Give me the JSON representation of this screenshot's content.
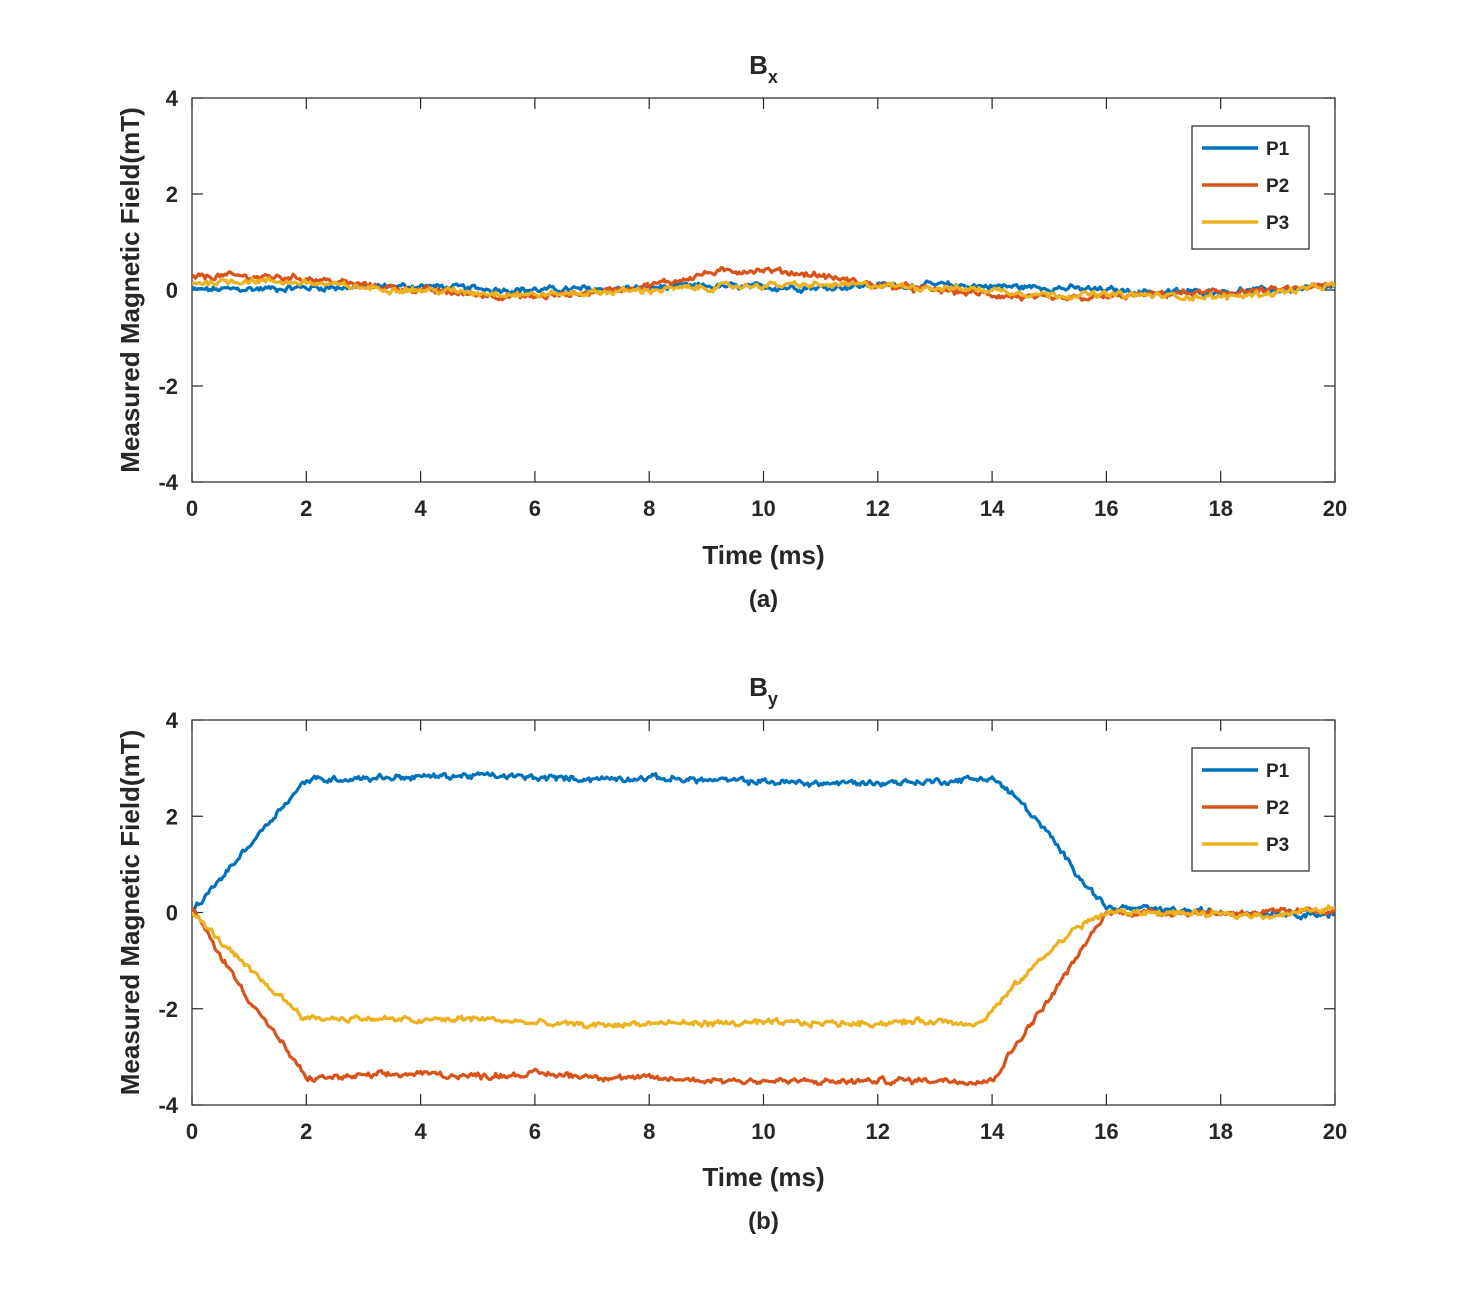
{
  "chart_data": [
    {
      "type": "line",
      "title": "B",
      "title_subscript": "x",
      "caption": "(a)",
      "xlabel": "Time (ms)",
      "ylabel": "Measured Magnetic Field(mT)",
      "xlim": [
        0,
        20
      ],
      "ylim": [
        -4,
        4
      ],
      "xticks": [
        "0",
        "2",
        "4",
        "6",
        "8",
        "10",
        "12",
        "14",
        "16",
        "18",
        "20"
      ],
      "yticks": [
        "-4",
        "-2",
        "0",
        "2",
        "4"
      ],
      "legend_position": "top-right",
      "grid": false,
      "series": [
        {
          "name": "P1",
          "color": "#0072BD",
          "x": [
            0,
            1,
            2,
            3,
            4,
            5,
            6,
            7,
            8,
            9,
            10,
            11,
            12,
            13,
            14,
            15,
            16,
            17,
            18,
            19,
            20
          ],
          "y": [
            0.0,
            0.02,
            0.05,
            0.06,
            0.08,
            0.03,
            0.0,
            0.02,
            0.05,
            0.08,
            0.06,
            0.05,
            0.1,
            0.1,
            0.08,
            0.05,
            0.0,
            -0.05,
            -0.03,
            0.0,
            0.05
          ]
        },
        {
          "name": "P2",
          "color": "#D95319",
          "x": [
            0,
            0.5,
            1,
            2,
            3,
            4,
            5,
            6,
            7,
            8,
            8.5,
            9,
            9.5,
            10,
            11,
            12,
            13,
            14,
            15,
            16,
            17,
            18,
            19,
            20
          ],
          "y": [
            0.25,
            0.3,
            0.28,
            0.25,
            0.1,
            0.0,
            -0.1,
            -0.15,
            -0.05,
            0.1,
            0.2,
            0.35,
            0.4,
            0.42,
            0.3,
            0.1,
            0.0,
            -0.1,
            -0.2,
            -0.15,
            -0.08,
            -0.05,
            0.0,
            0.1
          ]
        },
        {
          "name": "P3",
          "color": "#EDB120",
          "x": [
            0,
            1,
            2,
            3,
            4,
            5,
            6,
            7,
            8,
            9,
            10,
            11,
            12,
            13,
            14,
            15,
            16,
            17,
            18,
            19,
            20
          ],
          "y": [
            0.15,
            0.2,
            0.15,
            0.05,
            0.0,
            -0.05,
            -0.1,
            -0.05,
            0.0,
            0.05,
            0.1,
            0.1,
            0.1,
            0.05,
            0.0,
            -0.1,
            -0.1,
            -0.12,
            -0.15,
            -0.05,
            0.1
          ]
        }
      ]
    },
    {
      "type": "line",
      "title": "B",
      "title_subscript": "y",
      "caption": "(b)",
      "xlabel": "Time (ms)",
      "ylabel": "Measured Magnetic Field(mT)",
      "xlim": [
        0,
        20
      ],
      "ylim": [
        -4,
        4
      ],
      "xticks": [
        "0",
        "2",
        "4",
        "6",
        "8",
        "10",
        "12",
        "14",
        "16",
        "18",
        "20"
      ],
      "yticks": [
        "-4",
        "-2",
        "0",
        "2",
        "4"
      ],
      "legend_position": "top-right",
      "grid": false,
      "series": [
        {
          "name": "P1",
          "color": "#0072BD",
          "x": [
            0,
            0.5,
            1,
            1.5,
            2,
            3,
            4,
            5,
            6,
            7,
            8,
            9,
            10,
            11,
            12,
            13,
            14,
            14.5,
            15,
            15.5,
            16,
            17,
            18,
            19,
            20
          ],
          "y": [
            0.0,
            0.7,
            1.4,
            2.1,
            2.75,
            2.8,
            2.82,
            2.85,
            2.8,
            2.78,
            2.8,
            2.75,
            2.72,
            2.68,
            2.7,
            2.72,
            2.8,
            2.3,
            1.6,
            0.8,
            0.1,
            0.05,
            0.0,
            0.0,
            -0.05
          ]
        },
        {
          "name": "P2",
          "color": "#D95319",
          "x": [
            0,
            0.5,
            1,
            1.5,
            2,
            3,
            4,
            5,
            6,
            7,
            8,
            9,
            10,
            11,
            12,
            13,
            14,
            14.5,
            15,
            15.5,
            16,
            17,
            18,
            19,
            20
          ],
          "y": [
            0.1,
            -0.9,
            -1.8,
            -2.6,
            -3.45,
            -3.4,
            -3.35,
            -3.4,
            -3.35,
            -3.4,
            -3.45,
            -3.48,
            -3.5,
            -3.52,
            -3.5,
            -3.48,
            -3.5,
            -2.6,
            -1.8,
            -0.9,
            0.0,
            0.0,
            0.0,
            0.0,
            0.05
          ]
        },
        {
          "name": "P3",
          "color": "#EDB120",
          "x": [
            0,
            0.5,
            1,
            1.5,
            2,
            3,
            4,
            5,
            6,
            7,
            8,
            9,
            10,
            11,
            12,
            13,
            13.8,
            14.5,
            15,
            15.5,
            16,
            17,
            18,
            19,
            20
          ],
          "y": [
            0.0,
            -0.6,
            -1.2,
            -1.7,
            -2.2,
            -2.2,
            -2.25,
            -2.2,
            -2.3,
            -2.35,
            -2.3,
            -2.3,
            -2.3,
            -2.3,
            -2.3,
            -2.25,
            -2.3,
            -1.4,
            -0.8,
            -0.3,
            0.0,
            0.0,
            -0.05,
            -0.05,
            0.1
          ]
        }
      ]
    }
  ]
}
